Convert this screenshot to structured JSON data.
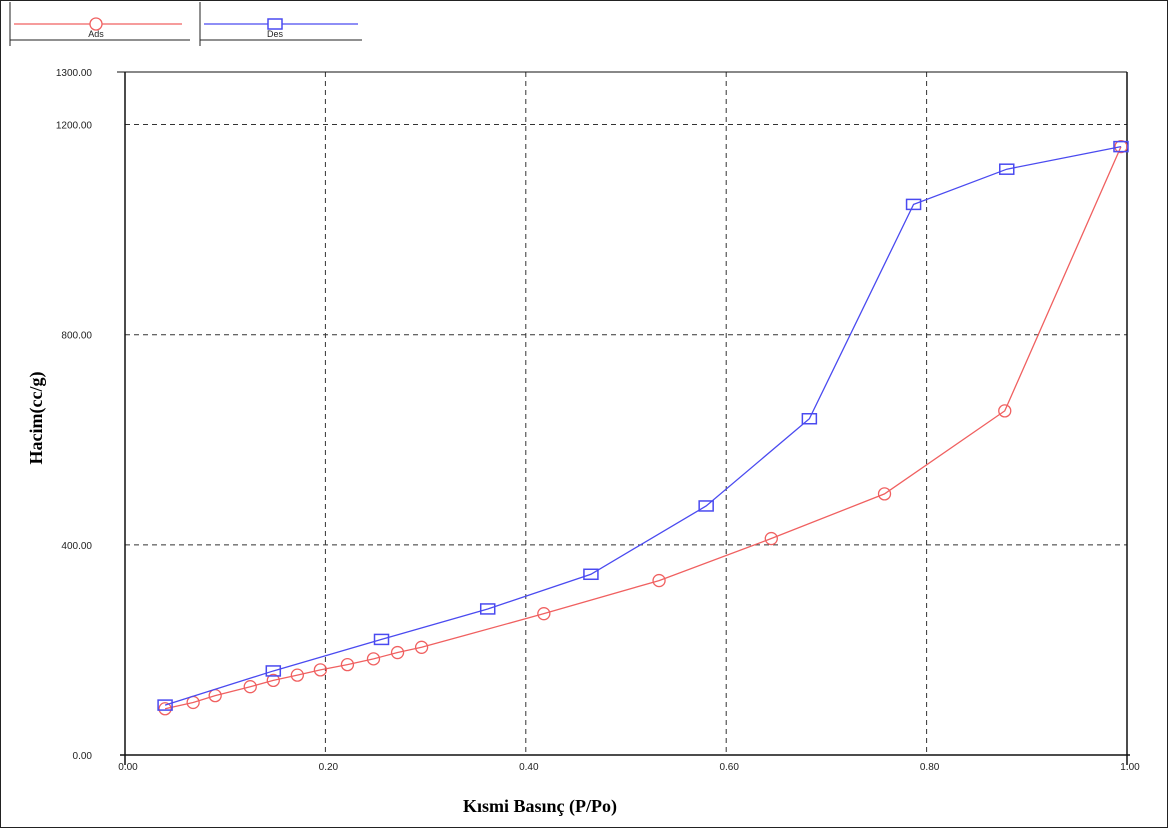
{
  "chart_data": {
    "type": "line",
    "title": "",
    "xlabel": "Kısmi Basınç (P/Po)",
    "ylabel": "Hacim(cc/g)",
    "xlim": [
      0.0,
      1.0
    ],
    "ylim": [
      0.0,
      1300.0
    ],
    "x_ticks": [
      "0.00",
      "0.20",
      "0.40",
      "0.60",
      "0.80",
      "1.00"
    ],
    "y_ticks": [
      "0.00",
      "400.00",
      "800.00",
      "1200.00",
      "1300.00"
    ],
    "grid": "dashed",
    "legend_placement": "top-left",
    "series": [
      {
        "name": "Ads",
        "color": "#f06060",
        "marker": "circle",
        "x": [
          0.04,
          0.068,
          0.09,
          0.125,
          0.148,
          0.172,
          0.195,
          0.222,
          0.248,
          0.272,
          0.296,
          0.418,
          0.533,
          0.645,
          0.758,
          0.878,
          0.994
        ],
        "y": [
          88,
          100,
          113,
          130,
          142,
          152,
          162,
          172,
          183,
          195,
          205,
          269,
          332,
          412,
          497,
          655,
          1158
        ]
      },
      {
        "name": "Des",
        "color": "#4a4af0",
        "marker": "square",
        "x": [
          0.04,
          0.148,
          0.256,
          0.362,
          0.465,
          0.58,
          0.683,
          0.787,
          0.88,
          0.994
        ],
        "y": [
          95,
          160,
          220,
          278,
          344,
          474,
          640,
          1048,
          1115,
          1158
        ]
      }
    ]
  }
}
